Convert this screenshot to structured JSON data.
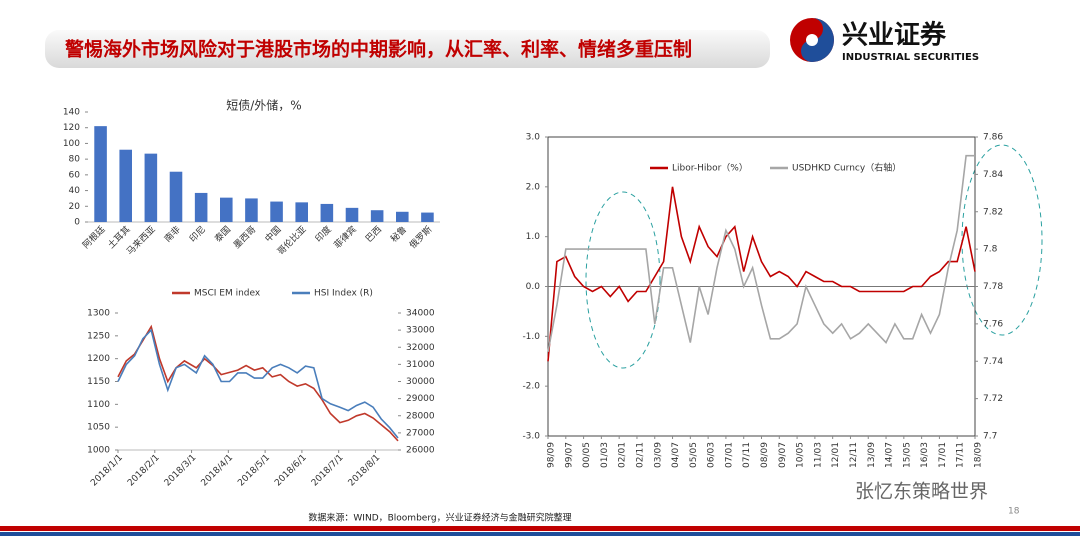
{
  "header": {
    "title": "警惕海外市场风险对于港股市场的中期影响，从汇率、利率、情绪多重压制",
    "logo_cn": "兴业证券",
    "logo_en": "INDUSTRIAL SECURITIES"
  },
  "chart_data": [
    {
      "type": "bar",
      "title": "短债/外储，%",
      "categories": [
        "阿根廷",
        "土耳其",
        "马来西亚",
        "南非",
        "印尼",
        "泰国",
        "墨西哥",
        "中国",
        "哥伦比亚",
        "印度",
        "菲律宾",
        "巴西",
        "秘鲁",
        "俄罗斯"
      ],
      "values": [
        122,
        92,
        87,
        64,
        37,
        31,
        30,
        26,
        25,
        23,
        18,
        15,
        13,
        12
      ],
      "color": "#4472c4",
      "ylim": [
        0,
        140
      ],
      "yticks": [
        0,
        20,
        40,
        60,
        80,
        100,
        120,
        140
      ],
      "grid": false
    },
    {
      "type": "line",
      "x": [
        "2018/1/1",
        "2018/1/8",
        "2018/1/15",
        "2018/1/22",
        "2018/1/29",
        "2018/2/5",
        "2018/2/12",
        "2018/2/19",
        "2018/2/26",
        "2018/3/5",
        "2018/3/12",
        "2018/3/19",
        "2018/3/26",
        "2018/4/2",
        "2018/4/9",
        "2018/4/16",
        "2018/4/23",
        "2018/4/30",
        "2018/5/7",
        "2018/5/14",
        "2018/5/21",
        "2018/5/28",
        "2018/6/4",
        "2018/6/11",
        "2018/6/18",
        "2018/6/25",
        "2018/7/2",
        "2018/7/9",
        "2018/7/16",
        "2018/7/23",
        "2018/7/30",
        "2018/8/6",
        "2018/8/13",
        "2018/8/20"
      ],
      "xticks": [
        "2018/1/1",
        "2018/2/1",
        "2018/3/1",
        "2018/4/1",
        "2018/5/1",
        "2018/6/1",
        "2018/7/1",
        "2018/8/1"
      ],
      "series": [
        {
          "name": "MSCI EM index",
          "color": "#c0392b",
          "values": [
            1160,
            1195,
            1210,
            1240,
            1270,
            1200,
            1150,
            1180,
            1195,
            1180,
            1200,
            1185,
            1165,
            1170,
            1175,
            1185,
            1175,
            1180,
            1160,
            1165,
            1150,
            1140,
            1145,
            1135,
            1110,
            1080,
            1060,
            1065,
            1075,
            1080,
            1070,
            1055,
            1040,
            1020
          ]
        },
        {
          "name": "HSI Index (R)",
          "color": "#4a7ebb",
          "axis": "y2",
          "values": [
            30000,
            31000,
            31500,
            32500,
            33000,
            31000,
            29500,
            30800,
            31000,
            30500,
            31500,
            31000,
            30000,
            30000,
            30500,
            30500,
            30200,
            30200,
            30800,
            31000,
            30800,
            30500,
            30900,
            30800,
            29000,
            28700,
            28500,
            28300,
            28600,
            28800,
            28500,
            27800,
            27300,
            26700
          ]
        }
      ],
      "ylim": [
        1000,
        1300
      ],
      "yticks": [
        1000,
        1050,
        1100,
        1150,
        1200,
        1250,
        1300
      ],
      "y2lim": [
        26000,
        34000
      ],
      "y2ticks": [
        26000,
        27000,
        28000,
        29000,
        30000,
        31000,
        32000,
        33000,
        34000
      ],
      "grid": false
    },
    {
      "type": "line",
      "x": [
        "98/09",
        "99/02",
        "99/07",
        "99/12",
        "00/05",
        "00/10",
        "01/03",
        "01/08",
        "02/01",
        "02/06",
        "02/11",
        "03/04",
        "03/09",
        "04/02",
        "04/07",
        "04/12",
        "05/05",
        "05/10",
        "06/03",
        "06/08",
        "07/01",
        "07/06",
        "07/11",
        "08/04",
        "08/09",
        "09/02",
        "09/07",
        "09/12",
        "10/05",
        "10/10",
        "11/03",
        "11/08",
        "12/01",
        "12/06",
        "12/11",
        "13/04",
        "13/09",
        "14/02",
        "14/07",
        "14/12",
        "15/05",
        "15/10",
        "16/03",
        "16/08",
        "17/01",
        "17/06",
        "17/11",
        "18/04",
        "18/09"
      ],
      "xticks": [
        "98/09",
        "99/07",
        "00/05",
        "01/03",
        "02/01",
        "02/11",
        "03/09",
        "04/07",
        "05/05",
        "06/03",
        "07/01",
        "07/11",
        "08/09",
        "09/07",
        "10/05",
        "11/03",
        "12/01",
        "12/11",
        "13/09",
        "14/07",
        "15/05",
        "16/03",
        "17/01",
        "17/11",
        "18/09"
      ],
      "series": [
        {
          "name": "Libor-Hibor（%）",
          "color": "#c00000",
          "values": [
            -1.5,
            0.5,
            0.6,
            0.2,
            0.0,
            -0.1,
            0.0,
            -0.2,
            0.0,
            -0.3,
            -0.1,
            -0.1,
            0.2,
            0.5,
            2.0,
            1.0,
            0.5,
            1.2,
            0.8,
            0.6,
            1.0,
            1.2,
            0.3,
            1.0,
            0.5,
            0.2,
            0.3,
            0.2,
            0.0,
            0.3,
            0.2,
            0.1,
            0.1,
            0.0,
            0.0,
            -0.1,
            -0.1,
            -0.1,
            -0.1,
            -0.1,
            -0.1,
            0.0,
            0.0,
            0.2,
            0.3,
            0.5,
            0.5,
            1.2,
            0.3
          ]
        },
        {
          "name": "USDHKD Curncy（右轴）",
          "color": "#a6a6a6",
          "axis": "y2",
          "values": [
            7.745,
            7.77,
            7.8,
            7.8,
            7.8,
            7.8,
            7.8,
            7.8,
            7.8,
            7.8,
            7.8,
            7.8,
            7.76,
            7.79,
            7.79,
            7.77,
            7.75,
            7.78,
            7.765,
            7.79,
            7.81,
            7.8,
            7.78,
            7.79,
            7.77,
            7.752,
            7.752,
            7.755,
            7.76,
            7.78,
            7.77,
            7.76,
            7.755,
            7.76,
            7.752,
            7.755,
            7.76,
            7.755,
            7.75,
            7.76,
            7.752,
            7.752,
            7.765,
            7.755,
            7.765,
            7.79,
            7.81,
            7.85,
            7.85
          ]
        }
      ],
      "ylim": [
        -3,
        3
      ],
      "yticks": [
        {
          "value": -3,
          "label": "-3.0"
        },
        {
          "value": -2,
          "label": "-2.0"
        },
        {
          "value": -1,
          "label": "-1.0"
        },
        {
          "value": 0,
          "label": "0.0"
        },
        {
          "value": 1,
          "label": "1.0"
        },
        {
          "value": 2,
          "label": "2.0"
        },
        {
          "value": 3,
          "label": "3.0"
        }
      ],
      "y2lim": [
        7.7,
        7.86
      ],
      "y2ticks": [
        7.7,
        7.72,
        7.74,
        7.76,
        7.78,
        7.8,
        7.82,
        7.84,
        7.86
      ],
      "grid": false
    }
  ],
  "source": "数据来源：WIND，Bloomberg，兴业证券经济与金融研究院整理",
  "watermark": "张忆东策略世界",
  "page": "18"
}
